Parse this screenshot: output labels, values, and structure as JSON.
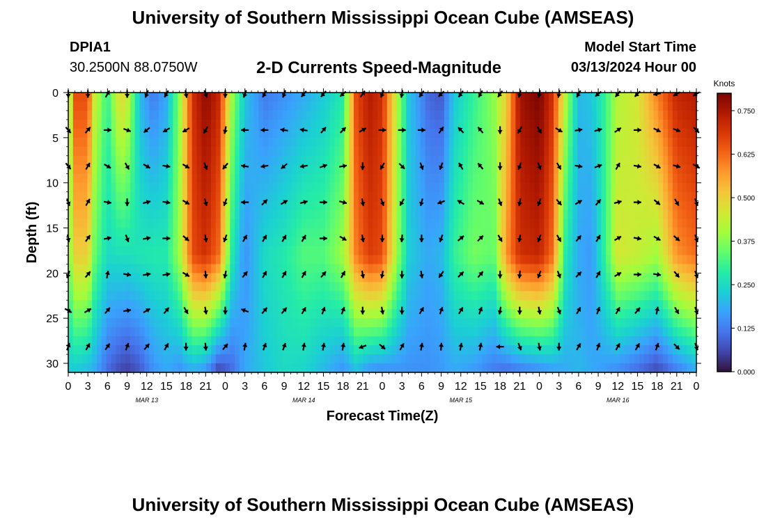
{
  "header": {
    "title": "University of Southern Mississippi Ocean Cube (AMSEAS)",
    "station": "DPIA1",
    "coords": "30.2500N  88.0750W",
    "subtitle": "2-D Currents Speed-Magnitude",
    "model_start_label": "Model Start Time",
    "model_start_value": "03/13/2024 Hour 00"
  },
  "footer": {
    "title": "University of Southern Mississippi Ocean Cube (AMSEAS)"
  },
  "chart_data": {
    "type": "heatmap",
    "title": "2-D Currents Speed-Magnitude",
    "xlabel": "Forecast Time(Z)",
    "ylabel": "Depth (ft)",
    "x_range": [
      0,
      96
    ],
    "ylim": [
      0,
      31
    ],
    "y_inverted": true,
    "x_tick_labels": [
      "0",
      "3",
      "6",
      "9",
      "12",
      "15",
      "18",
      "21",
      "0",
      "3",
      "6",
      "9",
      "12",
      "15",
      "18",
      "21",
      "0",
      "3",
      "6",
      "9",
      "12",
      "15",
      "18",
      "21",
      "0",
      "3",
      "6",
      "9",
      "12",
      "15",
      "18",
      "21",
      "0"
    ],
    "y_ticks": [
      0,
      5,
      10,
      15,
      20,
      25,
      30
    ],
    "date_labels": [
      {
        "label": "MAR 13",
        "hour": 12
      },
      {
        "label": "MAR 14",
        "hour": 36
      },
      {
        "label": "MAR 15",
        "hour": 60
      },
      {
        "label": "MAR 16",
        "hour": 84
      }
    ],
    "colorbar": {
      "unit": "Knots",
      "min": 0,
      "max": 0.8,
      "tick_values": [
        0.0,
        0.125,
        0.25,
        0.375,
        0.5,
        0.625,
        0.75
      ],
      "tick_labels": [
        "0.000",
        "0.125",
        "0.250",
        "0.375",
        "0.500",
        "0.625",
        "0.750"
      ],
      "colormap": [
        "#30123b",
        "#4145ab",
        "#4675ed",
        "#39a2fc",
        "#1bcfd4",
        "#24eca6",
        "#61fc6c",
        "#a4fc3b",
        "#d1e834",
        "#f3c63a",
        "#fe9b2d",
        "#f36315",
        "#d93806",
        "#b11901",
        "#7a0402"
      ]
    },
    "hour_speed_profiles": [
      {
        "hour": 0,
        "top": 0.33,
        "mid": 0.35,
        "bottom": 0.22
      },
      {
        "hour": 1,
        "top": 0.66,
        "mid": 0.5,
        "bottom": 0.22
      },
      {
        "hour": 3,
        "top": 0.66,
        "mid": 0.5,
        "bottom": 0.2
      },
      {
        "hour": 4,
        "top": 0.45,
        "mid": 0.35,
        "bottom": 0.18
      },
      {
        "hour": 6,
        "top": 0.3,
        "mid": 0.25,
        "bottom": 0.1
      },
      {
        "hour": 8,
        "top": 0.5,
        "mid": 0.26,
        "bottom": 0.06
      },
      {
        "hour": 9,
        "top": 0.45,
        "mid": 0.26,
        "bottom": 0.05
      },
      {
        "hour": 11,
        "top": 0.2,
        "mid": 0.27,
        "bottom": 0.08
      },
      {
        "hour": 13,
        "top": 0.12,
        "mid": 0.28,
        "bottom": 0.15
      },
      {
        "hour": 15,
        "top": 0.18,
        "mid": 0.28,
        "bottom": 0.18
      },
      {
        "hour": 17,
        "top": 0.38,
        "mid": 0.4,
        "bottom": 0.15
      },
      {
        "hour": 19,
        "top": 0.7,
        "mid": 0.66,
        "bottom": 0.18
      },
      {
        "hour": 21,
        "top": 0.78,
        "mid": 0.7,
        "bottom": 0.15
      },
      {
        "hour": 23,
        "top": 0.72,
        "mid": 0.62,
        "bottom": 0.05
      },
      {
        "hour": 25,
        "top": 0.4,
        "mid": 0.28,
        "bottom": 0.1
      },
      {
        "hour": 27,
        "top": 0.22,
        "mid": 0.15,
        "bottom": 0.18
      },
      {
        "hour": 30,
        "top": 0.12,
        "mid": 0.25,
        "bottom": 0.22
      },
      {
        "hour": 33,
        "top": 0.15,
        "mid": 0.28,
        "bottom": 0.25
      },
      {
        "hour": 36,
        "top": 0.18,
        "mid": 0.33,
        "bottom": 0.24
      },
      {
        "hour": 39,
        "top": 0.22,
        "mid": 0.33,
        "bottom": 0.2
      },
      {
        "hour": 42,
        "top": 0.28,
        "mid": 0.4,
        "bottom": 0.15
      },
      {
        "hour": 44,
        "top": 0.66,
        "mid": 0.6,
        "bottom": 0.2
      },
      {
        "hour": 46,
        "top": 0.74,
        "mid": 0.68,
        "bottom": 0.15
      },
      {
        "hour": 48,
        "top": 0.7,
        "mid": 0.66,
        "bottom": 0.14
      },
      {
        "hour": 50,
        "top": 0.45,
        "mid": 0.42,
        "bottom": 0.15
      },
      {
        "hour": 52,
        "top": 0.22,
        "mid": 0.23,
        "bottom": 0.15
      },
      {
        "hour": 55,
        "top": 0.1,
        "mid": 0.18,
        "bottom": 0.15
      },
      {
        "hour": 57,
        "top": 0.08,
        "mid": 0.2,
        "bottom": 0.16
      },
      {
        "hour": 59,
        "top": 0.22,
        "mid": 0.3,
        "bottom": 0.18
      },
      {
        "hour": 62,
        "top": 0.3,
        "mid": 0.36,
        "bottom": 0.16
      },
      {
        "hour": 65,
        "top": 0.38,
        "mid": 0.34,
        "bottom": 0.12
      },
      {
        "hour": 67,
        "top": 0.5,
        "mid": 0.58,
        "bottom": 0.1
      },
      {
        "hour": 69,
        "top": 0.76,
        "mid": 0.7,
        "bottom": 0.12
      },
      {
        "hour": 72,
        "top": 0.8,
        "mid": 0.72,
        "bottom": 0.14
      },
      {
        "hour": 74,
        "top": 0.7,
        "mid": 0.62,
        "bottom": 0.16
      },
      {
        "hour": 76,
        "top": 0.42,
        "mid": 0.28,
        "bottom": 0.18
      },
      {
        "hour": 78,
        "top": 0.2,
        "mid": 0.18,
        "bottom": 0.2
      },
      {
        "hour": 80,
        "top": 0.22,
        "mid": 0.16,
        "bottom": 0.18
      },
      {
        "hour": 82,
        "top": 0.3,
        "mid": 0.3,
        "bottom": 0.16
      },
      {
        "hour": 84,
        "top": 0.42,
        "mid": 0.46,
        "bottom": 0.14
      },
      {
        "hour": 87,
        "top": 0.46,
        "mid": 0.44,
        "bottom": 0.1
      },
      {
        "hour": 90,
        "top": 0.6,
        "mid": 0.4,
        "bottom": 0.06
      },
      {
        "hour": 93,
        "top": 0.72,
        "mid": 0.58,
        "bottom": 0.12
      },
      {
        "hour": 96,
        "top": 0.74,
        "mid": 0.62,
        "bottom": 0.18
      }
    ],
    "vector_field": {
      "hours": [
        0,
        3,
        6,
        9,
        12,
        15,
        18,
        21,
        24,
        27,
        30,
        33,
        36,
        39,
        42,
        45,
        48,
        51,
        54,
        57,
        60,
        63,
        66,
        69,
        72,
        75,
        78,
        81,
        84,
        87,
        90,
        93,
        96
      ],
      "depths_ft": [
        0,
        4,
        8,
        12,
        16,
        20,
        24,
        28
      ],
      "direction_deg_by_depth": [
        [
          180,
          180,
          30,
          180,
          200,
          210,
          170,
          160,
          180,
          200,
          210,
          200,
          220,
          220,
          230,
          35,
          200,
          190,
          215,
          225,
          215,
          210,
          215,
          195,
          190,
          190,
          210,
          230,
          220,
          225,
          260,
          240,
          240
        ],
        [
          140,
          40,
          90,
          110,
          230,
          240,
          240,
          210,
          190,
          270,
          270,
          280,
          280,
          40,
          45,
          60,
          90,
          90,
          90,
          35,
          315,
          320,
          180,
          210,
          150,
          120,
          80,
          75,
          55,
          90,
          115,
          110,
          135
        ],
        [
          140,
          30,
          120,
          150,
          120,
          100,
          120,
          160,
          220,
          280,
          260,
          230,
          260,
          70,
          80,
          180,
          210,
          135,
          160,
          200,
          330,
          320,
          180,
          200,
          160,
          150,
          100,
          70,
          30,
          100,
          120,
          105,
          120
        ],
        [
          160,
          30,
          100,
          180,
          75,
          100,
          120,
          165,
          200,
          270,
          45,
          60,
          75,
          90,
          105,
          170,
          160,
          210,
          195,
          250,
          300,
          120,
          160,
          190,
          200,
          140,
          60,
          40,
          75,
          90,
          130,
          150,
          160
        ],
        [
          170,
          35,
          80,
          160,
          80,
          90,
          130,
          170,
          200,
          30,
          30,
          30,
          30,
          90,
          120,
          170,
          180,
          185,
          180,
          200,
          50,
          45,
          150,
          190,
          200,
          150,
          40,
          30,
          60,
          100,
          120,
          130,
          160
        ],
        [
          200,
          40,
          10,
          100,
          80,
          80,
          120,
          175,
          190,
          40,
          30,
          30,
          30,
          40,
          30,
          170,
          190,
          180,
          170,
          215,
          45,
          40,
          180,
          185,
          200,
          160,
          45,
          30,
          60,
          90,
          100,
          140,
          160
        ],
        [
          120,
          60,
          40,
          80,
          60,
          40,
          150,
          170,
          180,
          290,
          40,
          40,
          30,
          20,
          20,
          180,
          170,
          180,
          30,
          20,
          30,
          20,
          190,
          180,
          170,
          160,
          30,
          20,
          30,
          40,
          10,
          150,
          160
        ],
        [
          20,
          30,
          35,
          20,
          40,
          30,
          180,
          175,
          40,
          10,
          20,
          20,
          10,
          10,
          10,
          250,
          130,
          30,
          10,
          5,
          10,
          10,
          270,
          160,
          170,
          180,
          30,
          20,
          30,
          30,
          20,
          135,
          160
        ]
      ]
    }
  }
}
